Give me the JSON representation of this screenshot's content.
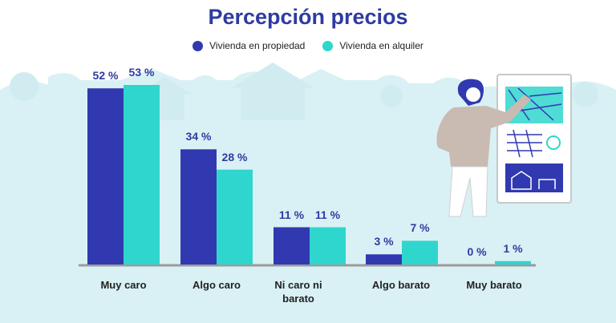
{
  "colors": {
    "series1": "#3039b0",
    "series2": "#2fd6cd",
    "title": "#2e3ba0",
    "background_scene": "#d9f1f4",
    "axis": "#9b9b9b"
  },
  "chart_data": {
    "type": "bar",
    "title": "Percepción precios",
    "categories": [
      "Muy caro",
      "Algo caro",
      "Ni caro ni barato",
      "Algo barato",
      "Muy barato"
    ],
    "series": [
      {
        "name": "Vivienda en propiedad",
        "values": [
          52,
          34,
          11,
          3,
          0
        ],
        "labels": [
          "52 %",
          "34 %",
          "11 %",
          "3 %",
          "0 %"
        ]
      },
      {
        "name": "Vivienda en alquiler",
        "values": [
          53,
          28,
          11,
          7,
          1
        ],
        "labels": [
          "53 %",
          "28 %",
          "11 %",
          "7 %",
          "1 %"
        ]
      }
    ],
    "ylim": [
      0,
      53
    ],
    "xlabel": "",
    "ylabel": "",
    "grid": false,
    "legend": "top-center"
  }
}
